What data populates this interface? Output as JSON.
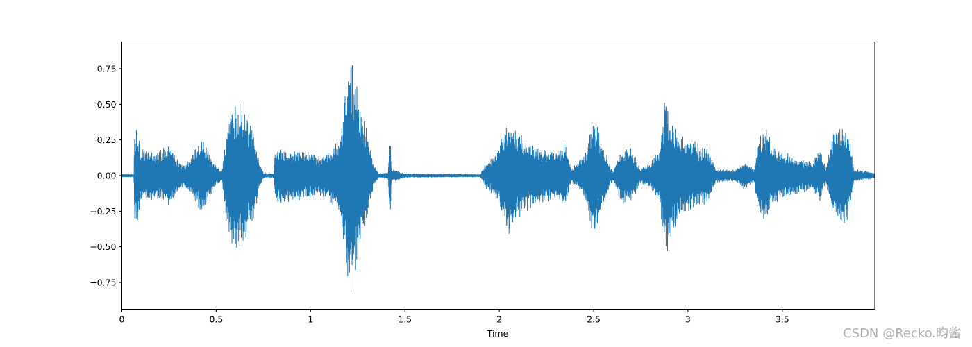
{
  "chart_data": {
    "type": "line",
    "title": "",
    "xlabel": "Time",
    "ylabel": "",
    "xlim": [
      0,
      3.99
    ],
    "ylim": [
      -0.937,
      0.937
    ],
    "xticks": [
      0,
      0.5,
      1,
      1.5,
      2,
      2.5,
      3,
      3.5
    ],
    "xtick_labels": [
      "0",
      "0.5",
      "1",
      "1.5",
      "2",
      "2.5",
      "3",
      "3.5"
    ],
    "yticks": [
      0.75,
      0.5,
      0.25,
      0,
      -0.25,
      -0.5,
      -0.75
    ],
    "ytick_labels": [
      "0.75",
      "0.50",
      "0.25",
      "0.00",
      "−0.25",
      "−0.50",
      "−0.75"
    ],
    "grid": false,
    "series_color": "#1f77b4",
    "envelope": {
      "time": [
        0,
        0.064,
        0.066,
        0.08,
        0.1,
        0.15,
        0.2,
        0.25,
        0.28,
        0.32,
        0.35,
        0.4,
        0.43,
        0.47,
        0.5,
        0.53,
        0.555,
        0.57,
        0.6,
        0.65,
        0.7,
        0.73,
        0.75,
        0.805,
        0.812,
        0.85,
        0.9,
        0.95,
        1.0,
        1.05,
        1.1,
        1.15,
        1.18,
        1.2,
        1.22,
        1.25,
        1.3,
        1.33,
        1.36,
        1.41,
        1.42,
        1.43,
        1.5,
        1.9,
        1.93,
        1.98,
        2.0,
        2.05,
        2.1,
        2.2,
        2.3,
        2.35,
        2.38,
        2.45,
        2.5,
        2.53,
        2.6,
        2.65,
        2.7,
        2.75,
        2.8,
        2.85,
        2.88,
        2.9,
        2.95,
        3.0,
        3.1,
        3.15,
        3.25,
        3.3,
        3.35,
        3.38,
        3.42,
        3.45,
        3.55,
        3.65,
        3.7,
        3.73,
        3.77,
        3.82,
        3.86,
        3.88,
        3.99
      ],
      "amplitude": [
        0.012,
        0.012,
        0.3,
        0.35,
        0.2,
        0.17,
        0.18,
        0.22,
        0.15,
        0.08,
        0.1,
        0.24,
        0.26,
        0.15,
        0.08,
        0.03,
        0.35,
        0.5,
        0.53,
        0.5,
        0.3,
        0.1,
        0.02,
        0.015,
        0.2,
        0.2,
        0.19,
        0.18,
        0.17,
        0.14,
        0.18,
        0.25,
        0.55,
        0.8,
        0.85,
        0.6,
        0.32,
        0.1,
        0.02,
        0.02,
        0.33,
        0.05,
        0.015,
        0.012,
        0.1,
        0.15,
        0.22,
        0.45,
        0.3,
        0.2,
        0.17,
        0.25,
        0.05,
        0.15,
        0.45,
        0.3,
        0.03,
        0.2,
        0.2,
        0.05,
        0.1,
        0.2,
        0.57,
        0.5,
        0.3,
        0.27,
        0.2,
        0.05,
        0.04,
        0.1,
        0.05,
        0.3,
        0.35,
        0.2,
        0.15,
        0.1,
        0.2,
        0.05,
        0.3,
        0.4,
        0.25,
        0.05,
        0.02
      ]
    }
  },
  "watermark": "CSDN @Recko.昀酱"
}
